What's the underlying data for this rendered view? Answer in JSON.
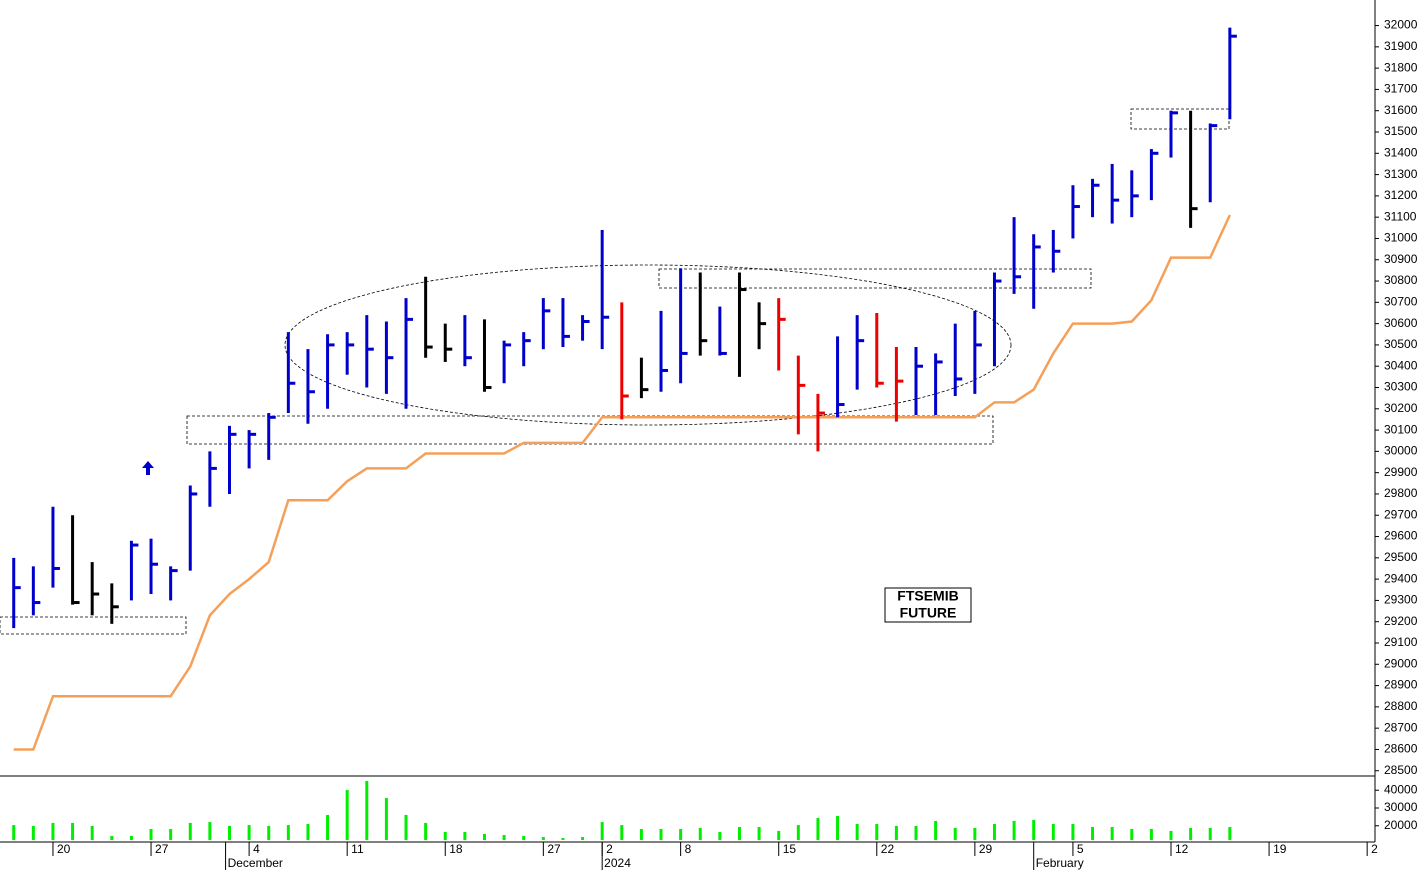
{
  "chart_data": {
    "type": "ohlc",
    "xlim": [
      -0.7,
      69.4
    ],
    "ylim": [
      28480,
      32120
    ],
    "yticks": [
      28500,
      28600,
      28700,
      28800,
      28900,
      29000,
      29100,
      29200,
      29300,
      29400,
      29500,
      29600,
      29700,
      29800,
      29900,
      30000,
      30100,
      30200,
      30300,
      30400,
      30500,
      30600,
      30700,
      30800,
      30900,
      31000,
      31100,
      31200,
      31300,
      31400,
      31500,
      31600,
      31700,
      31800,
      31900,
      32000
    ],
    "xticks": [
      {
        "value": 2,
        "label": "20"
      },
      {
        "value": 7,
        "label": "27"
      },
      {
        "value": 12,
        "label": "4"
      },
      {
        "value": 17,
        "label": "11"
      },
      {
        "value": 22,
        "label": "18"
      },
      {
        "value": 27,
        "label": "27"
      },
      {
        "value": 30,
        "label": "2"
      },
      {
        "value": 34,
        "label": "8"
      },
      {
        "value": 39,
        "label": "15"
      },
      {
        "value": 44,
        "label": "22"
      },
      {
        "value": 49,
        "label": "29"
      },
      {
        "value": 54,
        "label": "5"
      },
      {
        "value": 59,
        "label": "12"
      },
      {
        "value": 64,
        "label": "19"
      },
      {
        "value": 69,
        "label": "2"
      }
    ],
    "month_ticks": [
      {
        "value": 10.8,
        "label": "December"
      },
      {
        "value": 30,
        "label": "2024"
      },
      {
        "value": 52,
        "label": "February"
      }
    ],
    "high": [
      29500,
      29460,
      29740,
      29700,
      29480,
      29380,
      29580,
      29590,
      29460,
      29840,
      30000,
      30120,
      30100,
      30180,
      30560,
      30480,
      30550,
      30560,
      30640,
      30610,
      30720,
      30820,
      30600,
      30640,
      30620,
      30520,
      30560,
      30720,
      30720,
      30640,
      31040,
      30700,
      30440,
      30660,
      30860,
      30840,
      30680,
      30840,
      30700,
      30720,
      30450,
      30270,
      30540,
      30640,
      30650,
      30490,
      30490,
      30460,
      30600,
      30660,
      30840,
      31100,
      31020,
      31040,
      31250,
      31280,
      31350,
      31320,
      31420,
      31600,
      31600,
      31540,
      31990
    ],
    "low": [
      29170,
      29230,
      29360,
      29280,
      29230,
      29190,
      29300,
      29330,
      29300,
      29440,
      29740,
      29800,
      29920,
      29960,
      30180,
      30130,
      30200,
      30360,
      30300,
      30270,
      30200,
      30440,
      30420,
      30400,
      30280,
      30320,
      30400,
      30480,
      30490,
      30520,
      30480,
      30150,
      30250,
      30280,
      30320,
      30450,
      30450,
      30350,
      30480,
      30380,
      30080,
      30000,
      30160,
      30290,
      30300,
      30140,
      30170,
      30170,
      30260,
      30270,
      30400,
      30740,
      30670,
      30840,
      31000,
      31100,
      31070,
      31100,
      31180,
      31380,
      31050,
      31170,
      31560
    ],
    "close": [
      29360,
      29290,
      29450,
      29290,
      29330,
      29270,
      29560,
      29470,
      29440,
      29800,
      29920,
      30080,
      30080,
      30160,
      30320,
      30280,
      30500,
      30500,
      30480,
      30440,
      30620,
      30490,
      30480,
      30440,
      30300,
      30500,
      30520,
      30660,
      30540,
      30610,
      30630,
      30260,
      30290,
      30380,
      30460,
      30520,
      30460,
      30760,
      30600,
      30620,
      30310,
      30180,
      30220,
      30520,
      30320,
      30330,
      30400,
      30420,
      30340,
      30500,
      30800,
      30820,
      30960,
      30940,
      31150,
      31250,
      31180,
      31200,
      31400,
      31590,
      31140,
      31530,
      31950
    ],
    "colors": [
      "#0000cc",
      "#0000cc",
      "#0000cc",
      "#000000",
      "#000000",
      "#000000",
      "#0000cc",
      "#0000cc",
      "#0000cc",
      "#0000cc",
      "#0000cc",
      "#0000cc",
      "#0000cc",
      "#0000cc",
      "#0000cc",
      "#0000cc",
      "#0000cc",
      "#0000cc",
      "#0000cc",
      "#0000cc",
      "#0000cc",
      "#000000",
      "#000000",
      "#0000cc",
      "#000000",
      "#0000cc",
      "#0000cc",
      "#0000cc",
      "#0000cc",
      "#0000cc",
      "#0000cc",
      "#ee0000",
      "#000000",
      "#0000cc",
      "#0000cc",
      "#000000",
      "#0000cc",
      "#000000",
      "#000000",
      "#ee0000",
      "#ee0000",
      "#ee0000",
      "#0000cc",
      "#0000cc",
      "#ee0000",
      "#ee0000",
      "#0000cc",
      "#0000cc",
      "#0000cc",
      "#0000cc",
      "#0000cc",
      "#0000cc",
      "#0000cc",
      "#0000cc",
      "#0000cc",
      "#0000cc",
      "#0000cc",
      "#0000cc",
      "#0000cc",
      "#0000cc",
      "#000000",
      "#0000cc",
      "#0000cc"
    ],
    "stop_line": {
      "color": "#f5a05a",
      "values": [
        28600,
        28600,
        28850,
        28850,
        28850,
        28850,
        28850,
        28850,
        28850,
        28990,
        29230,
        29330,
        29400,
        29480,
        29770,
        29770,
        29770,
        29860,
        29920,
        29920,
        29920,
        29990,
        29990,
        29990,
        29990,
        29990,
        30040,
        30040,
        30040,
        30040,
        30160,
        30160,
        30160,
        30160,
        30160,
        30160,
        30160,
        30160,
        30160,
        30160,
        30160,
        30160,
        30160,
        30160,
        30160,
        30160,
        30160,
        30160,
        30160,
        30160,
        30230,
        30230,
        30290,
        30460,
        30600,
        30600,
        30600,
        30610,
        30710,
        30910,
        30910,
        30910,
        31110
      ]
    },
    "volume": {
      "color": "#00ee00",
      "ylim": [
        12000,
        48000
      ],
      "yticks": [
        20000,
        30000,
        40000
      ],
      "values": [
        20400,
        19900,
        21600,
        21600,
        19900,
        14300,
        14300,
        18200,
        18200,
        21600,
        22100,
        19900,
        20400,
        19900,
        20400,
        21000,
        26100,
        40100,
        45200,
        35600,
        26100,
        21600,
        16500,
        16500,
        15400,
        14800,
        14300,
        13700,
        13100,
        13700,
        22100,
        20400,
        18200,
        18200,
        18200,
        18800,
        16500,
        19300,
        19300,
        17100,
        20400,
        24400,
        25500,
        21000,
        21000,
        19900,
        19900,
        22700,
        18800,
        18800,
        21000,
        22700,
        23300,
        21000,
        21000,
        19300,
        19300,
        18200,
        18200,
        17100,
        18800,
        18800,
        19300
      ]
    },
    "label_lines": [
      "FTSEMIB",
      "FUTURE"
    ]
  }
}
